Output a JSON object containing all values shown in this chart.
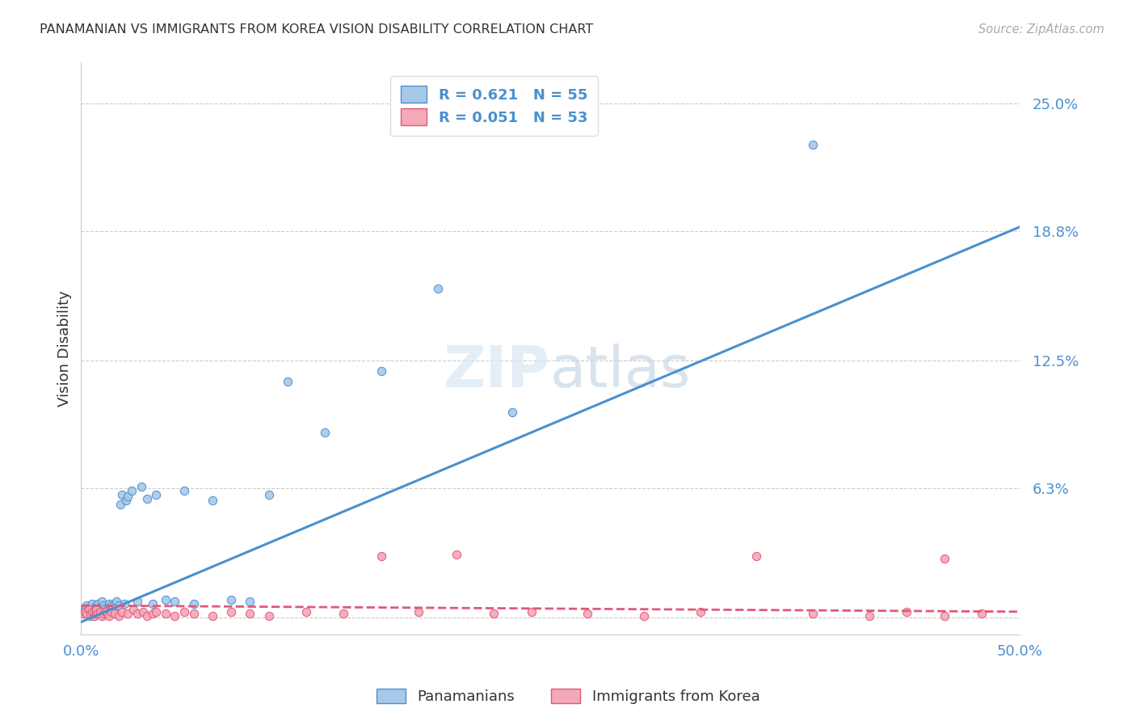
{
  "title": "PANAMANIAN VS IMMIGRANTS FROM KOREA VISION DISABILITY CORRELATION CHART",
  "source": "Source: ZipAtlas.com",
  "ylabel": "Vision Disability",
  "xlim": [
    0.0,
    0.5
  ],
  "ylim": [
    -0.008,
    0.27
  ],
  "series1_label": "Panamanians",
  "series2_label": "Immigrants from Korea",
  "blue_scatter_color": "#a8c8e8",
  "blue_line_color": "#4a90d0",
  "pink_scatter_color": "#f4a8b8",
  "pink_line_color": "#e05878",
  "title_color": "#333333",
  "axis_label_color": "#4a90d0",
  "background_color": "#ffffff",
  "grid_color": "#cccccc",
  "ytick_vals": [
    0.0,
    0.063,
    0.125,
    0.188,
    0.25
  ],
  "ytick_labels": [
    "",
    "6.3%",
    "12.5%",
    "18.8%",
    "25.0%"
  ],
  "pan_x": [
    0.001,
    0.002,
    0.003,
    0.003,
    0.004,
    0.004,
    0.005,
    0.005,
    0.006,
    0.006,
    0.007,
    0.007,
    0.008,
    0.008,
    0.009,
    0.009,
    0.01,
    0.01,
    0.011,
    0.011,
    0.012,
    0.012,
    0.013,
    0.014,
    0.015,
    0.016,
    0.017,
    0.018,
    0.019,
    0.02,
    0.021,
    0.022,
    0.023,
    0.024,
    0.025,
    0.027,
    0.03,
    0.032,
    0.035,
    0.038,
    0.04,
    0.045,
    0.05,
    0.055,
    0.06,
    0.07,
    0.08,
    0.09,
    0.1,
    0.11,
    0.13,
    0.16,
    0.19,
    0.23,
    0.39
  ],
  "pan_y": [
    0.003,
    0.004,
    0.002,
    0.006,
    0.003,
    0.005,
    0.001,
    0.004,
    0.003,
    0.007,
    0.002,
    0.005,
    0.004,
    0.006,
    0.003,
    0.007,
    0.002,
    0.005,
    0.004,
    0.008,
    0.003,
    0.006,
    0.005,
    0.004,
    0.007,
    0.006,
    0.005,
    0.007,
    0.008,
    0.006,
    0.055,
    0.06,
    0.007,
    0.057,
    0.059,
    0.062,
    0.008,
    0.064,
    0.058,
    0.007,
    0.06,
    0.009,
    0.008,
    0.062,
    0.007,
    0.057,
    0.009,
    0.008,
    0.06,
    0.115,
    0.09,
    0.12,
    0.16,
    0.1,
    0.23
  ],
  "kor_x": [
    0.001,
    0.002,
    0.003,
    0.004,
    0.005,
    0.006,
    0.007,
    0.007,
    0.008,
    0.008,
    0.009,
    0.01,
    0.011,
    0.012,
    0.013,
    0.014,
    0.015,
    0.016,
    0.018,
    0.02,
    0.022,
    0.025,
    0.028,
    0.03,
    0.033,
    0.035,
    0.038,
    0.04,
    0.045,
    0.05,
    0.055,
    0.06,
    0.07,
    0.08,
    0.09,
    0.1,
    0.12,
    0.14,
    0.16,
    0.18,
    0.2,
    0.22,
    0.24,
    0.27,
    0.3,
    0.33,
    0.36,
    0.39,
    0.42,
    0.44,
    0.46,
    0.46,
    0.48
  ],
  "kor_y": [
    0.002,
    0.003,
    0.002,
    0.004,
    0.002,
    0.003,
    0.001,
    0.003,
    0.002,
    0.004,
    0.002,
    0.003,
    0.001,
    0.002,
    0.003,
    0.002,
    0.001,
    0.003,
    0.002,
    0.001,
    0.003,
    0.002,
    0.004,
    0.002,
    0.003,
    0.001,
    0.002,
    0.003,
    0.002,
    0.001,
    0.003,
    0.002,
    0.001,
    0.003,
    0.002,
    0.001,
    0.003,
    0.002,
    0.03,
    0.003,
    0.031,
    0.002,
    0.003,
    0.002,
    0.001,
    0.003,
    0.03,
    0.002,
    0.001,
    0.003,
    0.001,
    0.029,
    0.002
  ],
  "blue_trend_x": [
    0.0,
    0.5
  ],
  "blue_trend_y": [
    -0.002,
    0.19
  ],
  "pink_trend_x": [
    0.0,
    0.5
  ],
  "pink_trend_y": [
    0.006,
    0.003
  ]
}
